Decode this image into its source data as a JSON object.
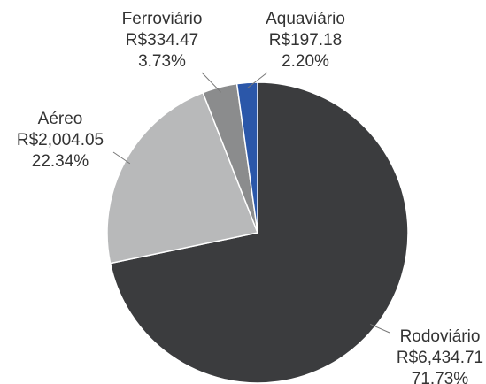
{
  "chart_data": {
    "type": "pie",
    "categories": [
      "Rodoviário",
      "Aéreo",
      "Ferroviário",
      "Aquaviário"
    ],
    "values": [
      6434.71,
      2004.05,
      334.47,
      197.18
    ],
    "value_labels": [
      "R$6,434.71",
      "R$2,004.05",
      "R$334.47",
      "R$197.18"
    ],
    "percent_labels": [
      "71.73%",
      "22.34%",
      "3.73%",
      "2.20%"
    ],
    "colors": [
      "#3b3c3e",
      "#b8b9ba",
      "#8b8c8d",
      "#2b57a9"
    ]
  }
}
